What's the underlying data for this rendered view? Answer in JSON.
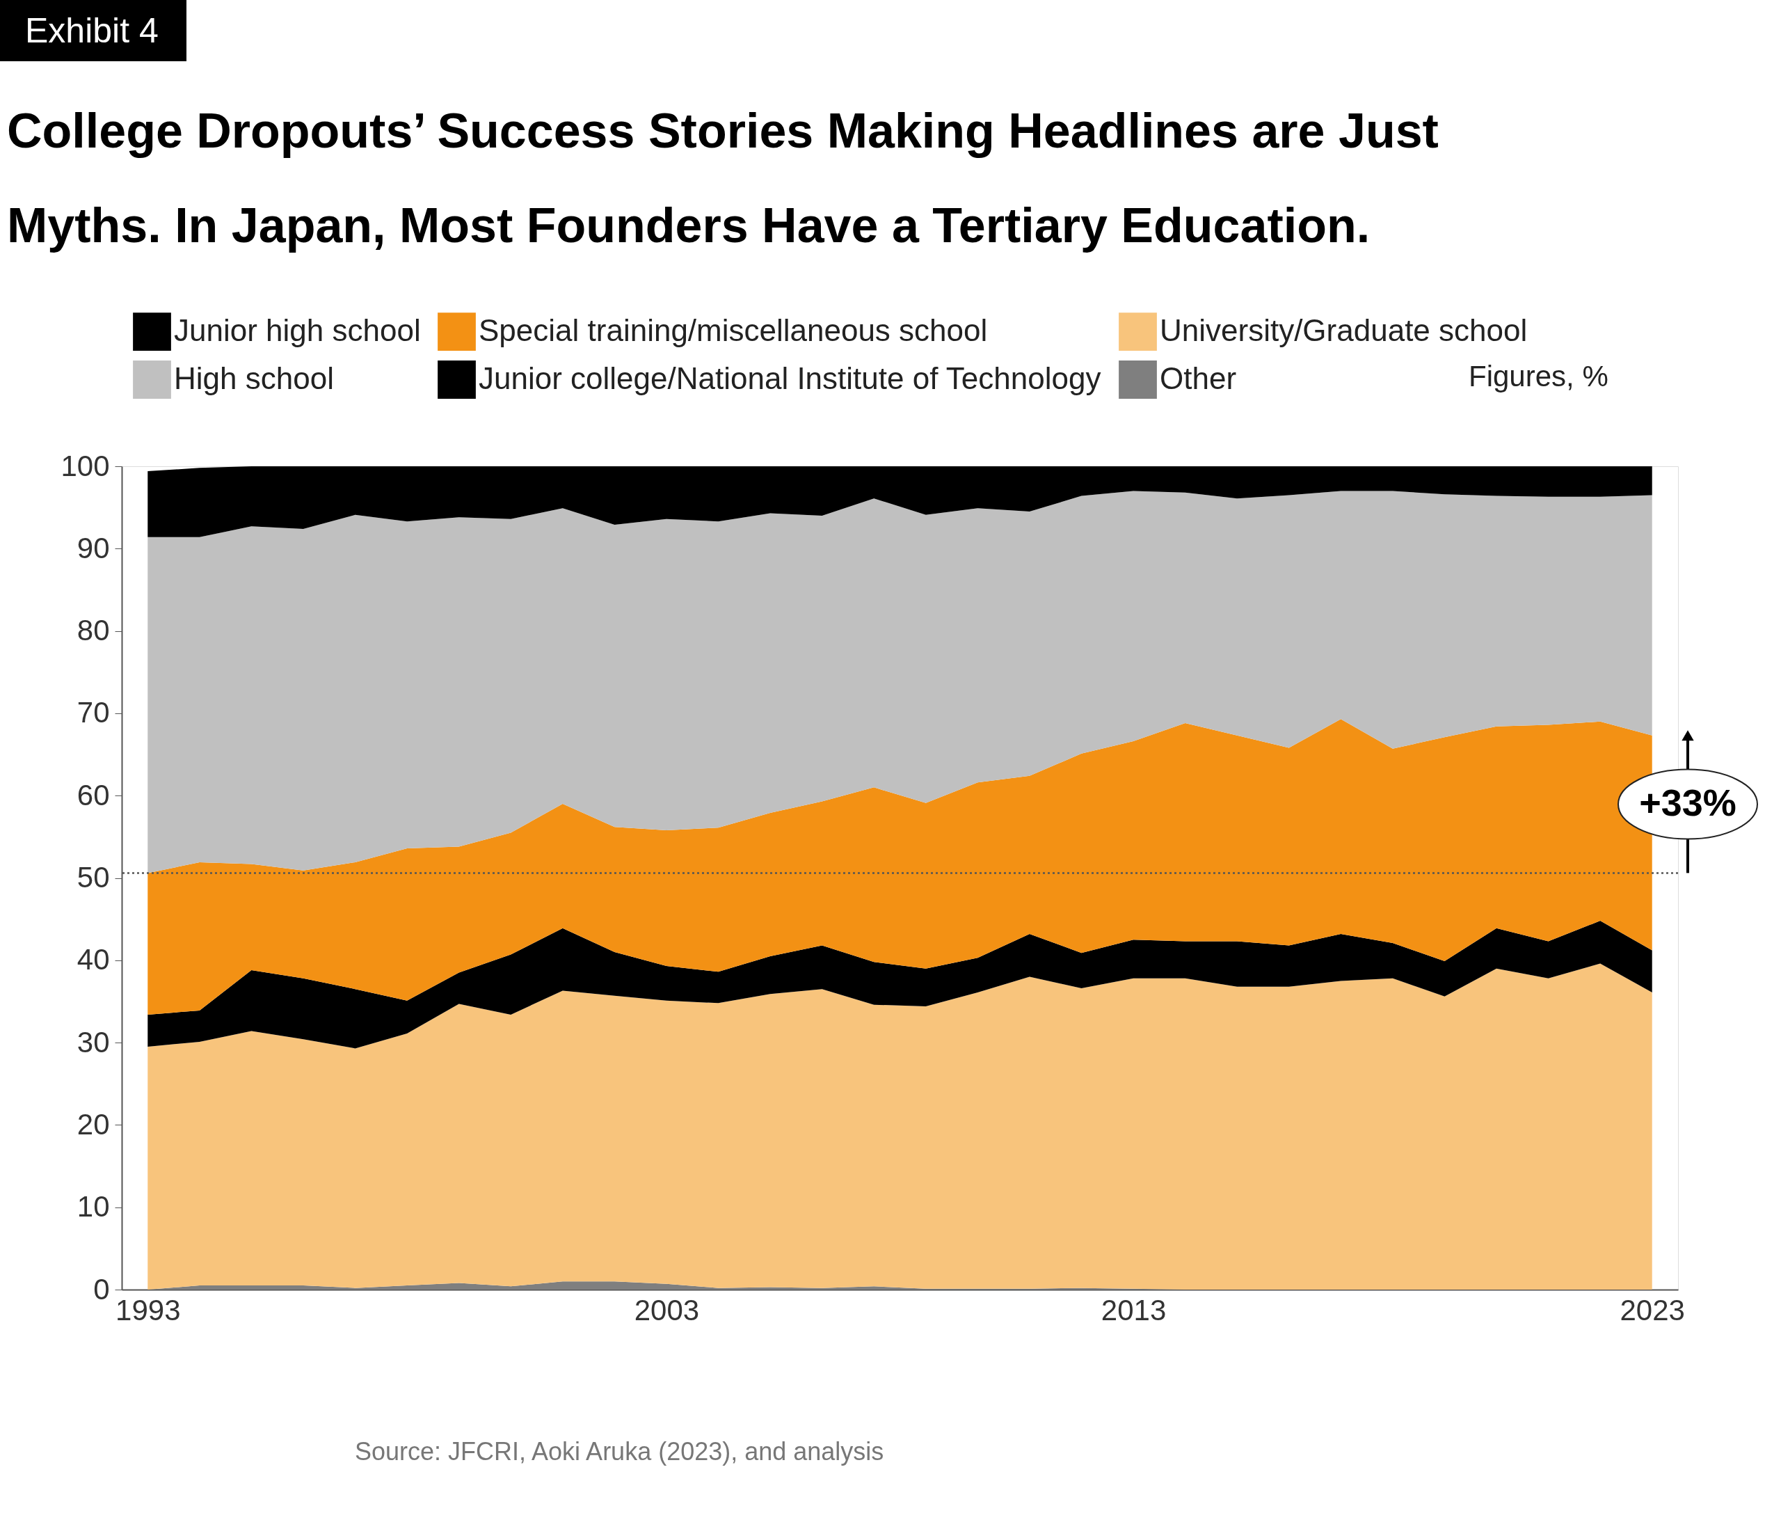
{
  "chart_data": {
    "type": "area",
    "title": "College Dropouts’ Success Stories Making Headlines are Just Myths. In Japan, Most Founders Have a Tertiary Education.",
    "categories": [
      "1993",
      null,
      null,
      null,
      null,
      null,
      null,
      null,
      null,
      null,
      "2003",
      null,
      null,
      null,
      null,
      null,
      null,
      null,
      null,
      "2013",
      null,
      null,
      null,
      null,
      null,
      null,
      null,
      null,
      null,
      "2023"
    ],
    "stacked": true,
    "ylim": [
      0,
      100
    ],
    "yticks": [
      0,
      10,
      20,
      30,
      40,
      50,
      60,
      70,
      80,
      90,
      100
    ],
    "legend": "top",
    "series": [
      {
        "name": "Other",
        "color": "#7f7f7f",
        "values": [
          0,
          0.5,
          0.5,
          0.5,
          0.2,
          0.5,
          0.8,
          0.4,
          1.0,
          1.0,
          0.7,
          0.2,
          0.3,
          0.2,
          0.4,
          0.1,
          0.1,
          0.1,
          0.2,
          0.1,
          0,
          0,
          0,
          0,
          0,
          0,
          0,
          0,
          0,
          0
        ]
      },
      {
        "name": "University/Graduate school",
        "color": "#f8c47c",
        "values": [
          29.5,
          29.6,
          30.9,
          29.9,
          29.1,
          30.6,
          33.9,
          33.0,
          35.3,
          34.7,
          34.4,
          34.6,
          35.6,
          36.3,
          34.2,
          34.3,
          36.0,
          37.9,
          36.4,
          37.7,
          37.8,
          36.8,
          36.8,
          37.5,
          37.8,
          35.6,
          39.0,
          37.8,
          39.6,
          36.1
        ]
      },
      {
        "name": "Junior college/National Institute of Technology",
        "color": "#000000",
        "values": [
          3.9,
          3.8,
          7.4,
          7.4,
          7.2,
          4.0,
          3.8,
          7.3,
          7.6,
          5.3,
          4.2,
          3.8,
          4.6,
          5.3,
          5.2,
          4.6,
          4.2,
          5.2,
          4.3,
          4.7,
          4.5,
          5.5,
          5.0,
          5.7,
          4.3,
          4.3,
          4.9,
          4.5,
          5.2,
          5.1
        ]
      },
      {
        "name": "Special training/miscellaneous school",
        "color": "#f39114",
        "values": [
          17.2,
          18.0,
          12.9,
          13.1,
          15.4,
          18.5,
          15.3,
          14.8,
          15.1,
          15.2,
          16.5,
          17.5,
          17.4,
          17.5,
          21.2,
          20.1,
          21.3,
          19.2,
          24.2,
          24.1,
          26.5,
          25.0,
          24.0,
          26.1,
          23.6,
          27.2,
          24.5,
          26.3,
          24.2,
          26.1
        ]
      },
      {
        "name": "High school",
        "color": "#c0c0c0",
        "values": [
          40.8,
          39.5,
          41.0,
          41.5,
          42.2,
          39.7,
          40.0,
          38.1,
          35.9,
          36.7,
          37.8,
          37.2,
          36.4,
          34.7,
          35.1,
          35.0,
          33.3,
          32.1,
          31.3,
          30.4,
          28.0,
          28.8,
          30.7,
          27.7,
          31.3,
          29.5,
          28.0,
          27.7,
          27.3,
          29.2
        ]
      },
      {
        "name": "Junior high school",
        "color": "#000000",
        "values": [
          8.0,
          8.4,
          7.3,
          7.6,
          5.9,
          6.7,
          6.2,
          6.4,
          5.1,
          7.1,
          6.4,
          6.7,
          5.7,
          6.0,
          3.9,
          5.9,
          5.1,
          5.5,
          3.6,
          3.0,
          3.2,
          3.9,
          3.5,
          3.0,
          3.0,
          3.4,
          3.6,
          3.7,
          3.7,
          3.5
        ]
      }
    ],
    "ref_lines": [
      {
        "axis": "y",
        "value": 50.6,
        "color": "#555555",
        "line_style": "dotted"
      }
    ],
    "annotations": [
      "Exhibit 4",
      "Figures, %",
      "+33%",
      "Source: JFCRI, Aoki Aruka (2023), and analysis"
    ]
  }
}
